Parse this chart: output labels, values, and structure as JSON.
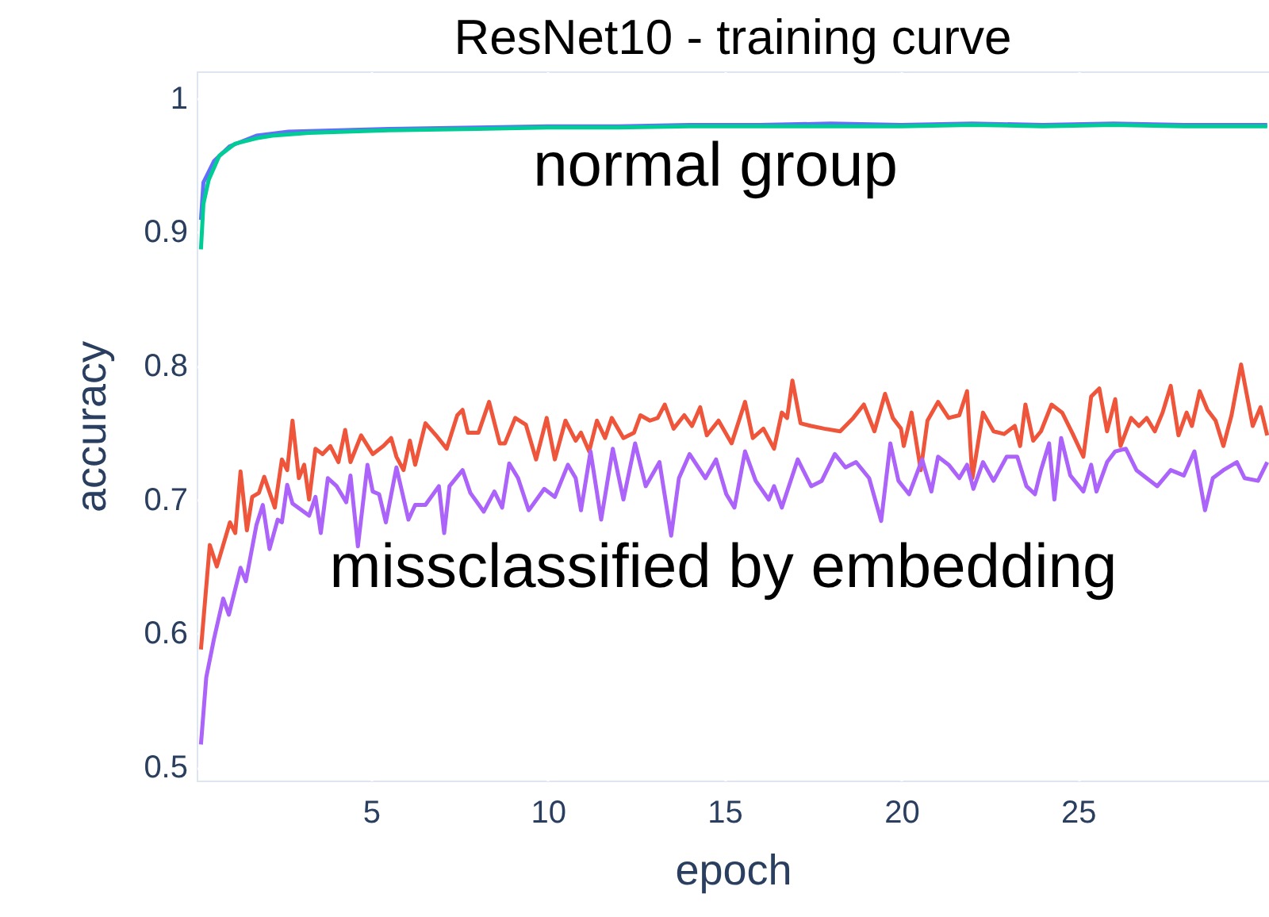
{
  "chart_data": {
    "type": "line",
    "title": "ResNet10 - training curve",
    "xlabel": "epoch",
    "ylabel": "accuracy",
    "xlim": [
      0.07,
      30.4
    ],
    "ylim": [
      0.49,
      1.02
    ],
    "xticks": [
      5,
      10,
      15,
      20,
      25
    ],
    "yticks": [
      0.5,
      0.6,
      0.7,
      0.8,
      0.9,
      1
    ],
    "grid": true,
    "line_style": "solid",
    "marker": "none",
    "annotations": [
      "normal group",
      "missclassified by embedding"
    ],
    "series": [
      {
        "color": "#636efa",
        "x": [
          0.19,
          0.26,
          0.56,
          1.0,
          1.76,
          2.66,
          5.5,
          8,
          10,
          12,
          14,
          16,
          18,
          20,
          22,
          24,
          26,
          28,
          30.35
        ],
        "values": [
          0.909,
          0.937,
          0.953,
          0.964,
          0.972,
          0.975,
          0.977,
          0.978,
          0.979,
          0.979,
          0.98,
          0.98,
          0.981,
          0.98,
          0.981,
          0.98,
          0.981,
          0.98,
          0.98
        ]
      },
      {
        "color": "#00cc96",
        "x": [
          0.19,
          0.26,
          0.41,
          0.71,
          1.16,
          1.76,
          2.21,
          3.25,
          5.5,
          8,
          10,
          12,
          14,
          16,
          18,
          20,
          22,
          24,
          26,
          28,
          30.35
        ],
        "values": [
          0.887,
          0.921,
          0.939,
          0.957,
          0.966,
          0.97,
          0.972,
          0.974,
          0.976,
          0.977,
          0.978,
          0.978,
          0.979,
          0.979,
          0.979,
          0.979,
          0.98,
          0.979,
          0.98,
          0.979,
          0.979
        ]
      },
      {
        "color": "#ef553b",
        "x": [
          0.19,
          0.44,
          0.64,
          1.01,
          1.16,
          1.31,
          1.49,
          1.64,
          1.83,
          1.98,
          2.28,
          2.48,
          2.63,
          2.78,
          2.96,
          3.11,
          3.25,
          3.43,
          3.63,
          3.85,
          4.08,
          4.27,
          4.42,
          4.72,
          5.05,
          5.35,
          5.57,
          5.72,
          5.92,
          6.1,
          6.25,
          6.54,
          6.84,
          7.14,
          7.44,
          7.59,
          7.74,
          8.04,
          8.34,
          8.64,
          8.79,
          9.08,
          9.38,
          9.67,
          9.97,
          10.2,
          10.5,
          10.79,
          10.94,
          11.17,
          11.39,
          11.62,
          11.81,
          12.14,
          12.44,
          12.62,
          12.89,
          13.11,
          13.31,
          13.56,
          13.86,
          14.08,
          14.31,
          14.5,
          14.83,
          15.2,
          15.58,
          15.8,
          16.1,
          16.4,
          16.62,
          16.77,
          16.92,
          17.15,
          17.45,
          17.82,
          18.27,
          18.64,
          18.94,
          19.24,
          19.54,
          19.76,
          19.99,
          20.07,
          20.29,
          20.55,
          20.74,
          21.04,
          21.34,
          21.64,
          21.86,
          22.01,
          22.31,
          22.61,
          22.91,
          23.21,
          23.36,
          23.51,
          23.73,
          23.95,
          24.25,
          24.55,
          24.85,
          25.15,
          25.37,
          25.6,
          25.82,
          26.05,
          26.2,
          26.5,
          26.72,
          26.94,
          27.17,
          27.39,
          27.62,
          27.84,
          28.07,
          28.22,
          28.44,
          28.66,
          28.89,
          29.11,
          29.34,
          29.61,
          29.94,
          30.16,
          30.35
        ],
        "values": [
          0.588,
          0.666,
          0.65,
          0.683,
          0.675,
          0.721,
          0.677,
          0.702,
          0.705,
          0.717,
          0.694,
          0.73,
          0.722,
          0.759,
          0.716,
          0.726,
          0.7,
          0.738,
          0.734,
          0.74,
          0.728,
          0.752,
          0.728,
          0.748,
          0.734,
          0.74,
          0.746,
          0.732,
          0.722,
          0.744,
          0.726,
          0.757,
          0.748,
          0.738,
          0.763,
          0.767,
          0.75,
          0.75,
          0.773,
          0.742,
          0.742,
          0.761,
          0.756,
          0.73,
          0.761,
          0.73,
          0.759,
          0.744,
          0.75,
          0.736,
          0.759,
          0.746,
          0.761,
          0.746,
          0.75,
          0.763,
          0.759,
          0.761,
          0.771,
          0.753,
          0.763,
          0.755,
          0.769,
          0.748,
          0.759,
          0.742,
          0.773,
          0.746,
          0.753,
          0.738,
          0.765,
          0.761,
          0.789,
          0.757,
          0.755,
          0.753,
          0.751,
          0.761,
          0.771,
          0.751,
          0.779,
          0.761,
          0.753,
          0.74,
          0.765,
          0.722,
          0.759,
          0.773,
          0.761,
          0.763,
          0.781,
          0.716,
          0.765,
          0.751,
          0.749,
          0.755,
          0.74,
          0.771,
          0.744,
          0.751,
          0.771,
          0.765,
          0.749,
          0.732,
          0.777,
          0.783,
          0.751,
          0.775,
          0.74,
          0.761,
          0.755,
          0.761,
          0.751,
          0.765,
          0.785,
          0.748,
          0.765,
          0.755,
          0.781,
          0.767,
          0.759,
          0.74,
          0.763,
          0.801,
          0.755,
          0.769,
          0.748
        ]
      },
      {
        "color": "#ab63fa",
        "x": [
          0.19,
          0.34,
          0.56,
          0.82,
          0.98,
          1.31,
          1.46,
          1.76,
          1.94,
          2.13,
          2.36,
          2.48,
          2.63,
          2.78,
          3.25,
          3.43,
          3.58,
          3.78,
          4.03,
          4.3,
          4.42,
          4.63,
          4.9,
          5.05,
          5.23,
          5.42,
          5.72,
          6.06,
          6.25,
          6.54,
          6.92,
          7.07,
          7.22,
          7.59,
          7.81,
          8.19,
          8.49,
          8.71,
          8.91,
          9.16,
          9.46,
          9.52,
          9.9,
          10.2,
          10.57,
          10.79,
          10.94,
          11.21,
          11.51,
          11.84,
          12.14,
          12.47,
          12.77,
          13.16,
          13.49,
          13.71,
          14.01,
          14.46,
          14.76,
          15.05,
          15.28,
          15.58,
          15.88,
          16.25,
          16.4,
          16.62,
          17.07,
          17.45,
          17.75,
          18.12,
          18.42,
          18.72,
          19.09,
          19.43,
          19.69,
          19.92,
          20.22,
          20.59,
          20.85,
          21.04,
          21.34,
          21.64,
          21.86,
          22.04,
          22.31,
          22.61,
          22.98,
          23.28,
          23.54,
          23.78,
          23.95,
          24.18,
          24.33,
          24.52,
          24.78,
          25.15,
          25.37,
          25.52,
          25.82,
          26.05,
          26.35,
          26.65,
          26.94,
          27.24,
          27.62,
          27.99,
          28.29,
          28.59,
          28.81,
          29.11,
          29.49,
          29.71,
          30.09,
          30.35
        ],
        "values": [
          0.517,
          0.567,
          0.596,
          0.626,
          0.614,
          0.649,
          0.639,
          0.681,
          0.696,
          0.663,
          0.685,
          0.683,
          0.711,
          0.697,
          0.688,
          0.702,
          0.675,
          0.716,
          0.71,
          0.698,
          0.718,
          0.665,
          0.726,
          0.706,
          0.704,
          0.683,
          0.724,
          0.685,
          0.696,
          0.696,
          0.71,
          0.675,
          0.71,
          0.722,
          0.705,
          0.691,
          0.706,
          0.694,
          0.727,
          0.716,
          0.692,
          0.694,
          0.708,
          0.702,
          0.726,
          0.716,
          0.692,
          0.736,
          0.685,
          0.738,
          0.7,
          0.742,
          0.71,
          0.728,
          0.673,
          0.716,
          0.734,
          0.716,
          0.73,
          0.704,
          0.694,
          0.736,
          0.714,
          0.7,
          0.71,
          0.694,
          0.73,
          0.71,
          0.714,
          0.734,
          0.724,
          0.728,
          0.716,
          0.684,
          0.742,
          0.714,
          0.704,
          0.73,
          0.706,
          0.732,
          0.726,
          0.716,
          0.726,
          0.708,
          0.728,
          0.714,
          0.732,
          0.732,
          0.71,
          0.704,
          0.722,
          0.742,
          0.7,
          0.746,
          0.718,
          0.706,
          0.726,
          0.706,
          0.728,
          0.736,
          0.738,
          0.722,
          0.716,
          0.71,
          0.722,
          0.718,
          0.736,
          0.692,
          0.716,
          0.722,
          0.728,
          0.716,
          0.714,
          0.728
        ]
      }
    ]
  }
}
